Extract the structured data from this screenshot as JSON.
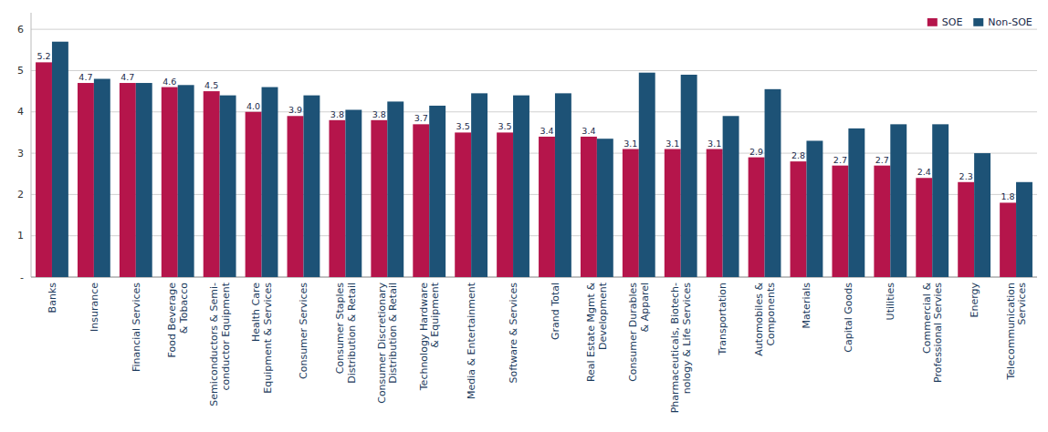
{
  "chart_data": {
    "type": "bar",
    "categories": [
      "Banks",
      "Insurance",
      "Financial Services",
      "Food Beverage\n& Tobacco",
      "Semiconductors & Semi-\nconductor Equipment",
      "Health Care\nEquipment & Services",
      "Consumer Services",
      "Consumer Staples\nDistribution & Retail",
      "Consumer Discretionary\nDistribution & Retail",
      "Technology Hardware\n& Equipment",
      "Media & Entertainment",
      "Software & Services",
      "Grand Total",
      "Real Estate Mgmt &\nDevelopment",
      "Consumer Durables\n& Apparel",
      "Pharmaceuticals, Biotech-\nnology & Life Services",
      "Transportation",
      "Automobiles &\nComponents",
      "Materials",
      "Capital Goods",
      "Utilities",
      "Commercial &\nProfessional Servies",
      "Energy",
      "Telecommunication\nServices"
    ],
    "series": [
      {
        "name": "SOE",
        "color": "#b5154b",
        "data_labels": true,
        "values": [
          5.2,
          4.7,
          4.7,
          4.6,
          4.5,
          4.0,
          3.9,
          3.8,
          3.8,
          3.7,
          3.5,
          3.5,
          3.4,
          3.4,
          3.1,
          3.1,
          3.1,
          2.9,
          2.8,
          2.7,
          2.7,
          2.4,
          2.3,
          1.8
        ],
        "value_labels": [
          "5.2",
          "4.7",
          "4.7",
          "4.6",
          "4.5",
          "4.0",
          "3.9",
          "3.8",
          "3.8",
          "3.7",
          "3.5",
          "3.5",
          "3.4",
          "3.4",
          "3.1",
          "3.1",
          "3.1",
          "2.9",
          "2.8",
          "2.7",
          "2.7",
          "2.4",
          "2.3",
          "1.8"
        ]
      },
      {
        "name": "Non-SOE",
        "color": "#1d5276",
        "values": [
          5.7,
          4.8,
          4.7,
          4.65,
          4.4,
          4.6,
          4.4,
          4.05,
          4.25,
          4.15,
          4.45,
          4.4,
          4.45,
          3.35,
          4.95,
          4.9,
          3.9,
          4.55,
          3.3,
          3.6,
          3.7,
          3.7,
          3.0,
          2.3
        ]
      }
    ],
    "ylim": [
      0,
      6.4
    ],
    "yticks": [
      {
        "value": 0,
        "label": "-"
      },
      1,
      2,
      3,
      4,
      5,
      6
    ],
    "grid": true,
    "legend": "upper right"
  }
}
